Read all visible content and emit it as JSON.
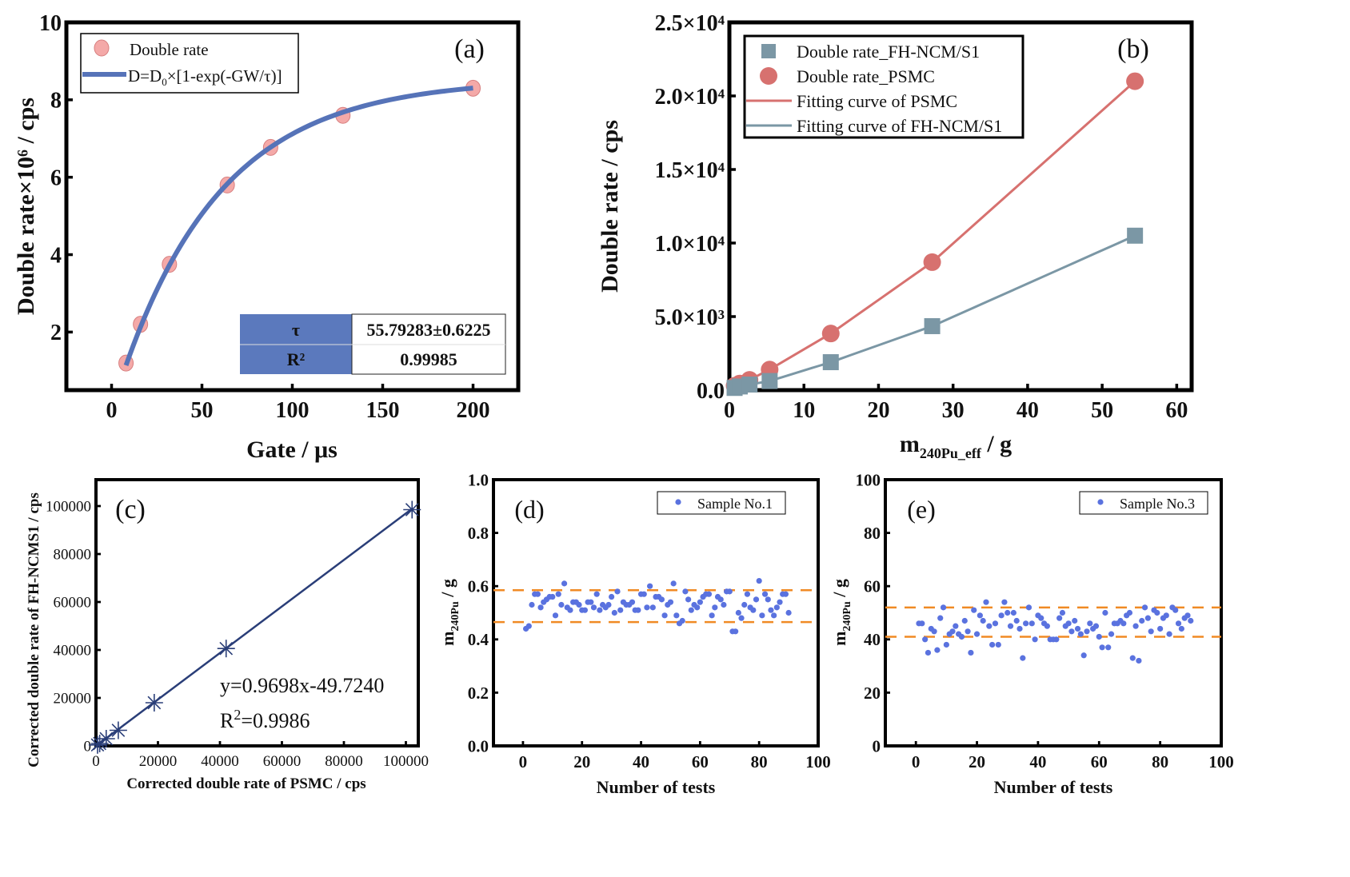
{
  "chart_data": [
    {
      "panel": "(a)",
      "type": "scatter",
      "xlabel": "Gate / μs",
      "ylabel": "Double rate×10⁶ / cps",
      "xlim": [
        -25,
        225
      ],
      "ylim": [
        0.5,
        10
      ],
      "xticks": [
        "0",
        "50",
        "100",
        "150",
        "200"
      ],
      "yticks": [
        "2",
        "4",
        "6",
        "8",
        "10"
      ],
      "grid": false,
      "legend_position": "top-left",
      "colors": {
        "points": "#f4a9a8",
        "point_edge": "#d77f7f",
        "fit": "#5673b8",
        "table_fill": "#5b79bd"
      },
      "series": [
        {
          "name": "Double rate",
          "x": [
            8,
            16,
            32,
            64,
            88,
            128,
            200
          ],
          "y": [
            1.2,
            2.2,
            3.75,
            5.8,
            6.77,
            7.6,
            8.3
          ]
        },
        {
          "name": "D=D0×[1-exp(-GW/τ)]",
          "name_parts": [
            "D=D",
            "0",
            "×[1-exp(-GW/τ)]"
          ],
          "type": "line",
          "D0": 8.54,
          "tau": 55.79283,
          "x_range": [
            8,
            200
          ]
        }
      ],
      "table": [
        {
          "param": "τ",
          "value": "55.79283±0.6225"
        },
        {
          "param": "R²",
          "value": "0.99985"
        }
      ]
    },
    {
      "panel": "(b)",
      "type": "line",
      "xlabel_parts": [
        "m",
        "240Pu_eff",
        " / g"
      ],
      "ylabel": "Double rate / cps",
      "xlim": [
        0,
        62
      ],
      "ylim": [
        0,
        25000
      ],
      "xticks": [
        "0",
        "10",
        "20",
        "30",
        "40",
        "50",
        "60"
      ],
      "yticks": [
        "0.0",
        "5.0×10³",
        "1.0×10⁴",
        "1.5×10⁴",
        "2.0×10⁴",
        "2.5×10⁴"
      ],
      "grid": false,
      "legend_position": "top-left",
      "series": [
        {
          "name": "Double rate_FH-NCM/S1",
          "marker": "square",
          "color": "#7b97a5",
          "x": [
            0.7,
            1.4,
            2.7,
            5.4,
            13.6,
            27.2,
            54.4
          ],
          "y": [
            150,
            250,
            380,
            620,
            1900,
            4350,
            10500
          ]
        },
        {
          "name": "Double rate_PSMC",
          "marker": "circle",
          "color": "#d7716f",
          "x": [
            0.7,
            1.4,
            2.7,
            5.4,
            13.6,
            27.2,
            54.4
          ],
          "y": [
            300,
            450,
            700,
            1400,
            3850,
            8700,
            21000
          ]
        },
        {
          "name": "Fitting curve of PSMC",
          "color": "#d7716f",
          "fit_of": 1
        },
        {
          "name": "Fitting curve of FH-NCM/S1",
          "color": "#7b97a5",
          "fit_of": 0
        }
      ]
    },
    {
      "panel": "(c)",
      "type": "scatter",
      "xlabel": "Corrected double rate of PSMC / cps",
      "ylabel": "Corrected double rate of  FH-NCMS1 / cps",
      "xlim": [
        0,
        104000
      ],
      "ylim": [
        0,
        111000
      ],
      "xticks": [
        "0",
        "20000",
        "40000",
        "60000",
        "80000",
        "100000"
      ],
      "yticks": [
        "0",
        "20000",
        "40000",
        "60000",
        "80000",
        "100000"
      ],
      "grid": false,
      "color": "#2a3e78",
      "x": [
        500,
        1200,
        3300,
        7200,
        18800,
        42000,
        102000
      ],
      "y": [
        400,
        1000,
        3000,
        6500,
        18000,
        40600,
        98500
      ],
      "fit": {
        "slope": 0.9698,
        "intercept": -49.724
      },
      "annotations": [
        "y=0.9698x-49.7240",
        "R",
        "2",
        "=0.9986"
      ]
    },
    {
      "panel": "(d)",
      "type": "scatter",
      "xlabel": "Number of tests",
      "ylabel_parts": [
        "m",
        "240Pu",
        " / g"
      ],
      "xlim": [
        -10,
        100
      ],
      "ylim": [
        0,
        1
      ],
      "xticks": [
        "0",
        "20",
        "40",
        "60",
        "80",
        "100"
      ],
      "yticks": [
        "0.0",
        "0.2",
        "0.4",
        "0.6",
        "0.8",
        "1.0"
      ],
      "legend_position": "top-right",
      "color": "#5a72df",
      "band_color": "#f08a24",
      "bands": [
        0.465,
        0.585
      ],
      "series": [
        {
          "name": "Sample No.1",
          "y": [
            0.44,
            0.45,
            0.53,
            0.57,
            0.57,
            0.52,
            0.54,
            0.55,
            0.56,
            0.56,
            0.49,
            0.57,
            0.53,
            0.61,
            0.52,
            0.51,
            0.54,
            0.54,
            0.53,
            0.51,
            0.51,
            0.54,
            0.54,
            0.52,
            0.57,
            0.51,
            0.53,
            0.52,
            0.53,
            0.56,
            0.5,
            0.58,
            0.51,
            0.54,
            0.53,
            0.53,
            0.54,
            0.51,
            0.51,
            0.57,
            0.57,
            0.52,
            0.6,
            0.52,
            0.56,
            0.56,
            0.55,
            0.49,
            0.53,
            0.54,
            0.61,
            0.49,
            0.46,
            0.47,
            0.58,
            0.55,
            0.51,
            0.53,
            0.52,
            0.54,
            0.56,
            0.57,
            0.57,
            0.49,
            0.52,
            0.56,
            0.55,
            0.53,
            0.58,
            0.58,
            0.43,
            0.43,
            0.5,
            0.48,
            0.53,
            0.57,
            0.52,
            0.51,
            0.55,
            0.62,
            0.49,
            0.57,
            0.55,
            0.51,
            0.49,
            0.52,
            0.54,
            0.57,
            0.57,
            0.5
          ]
        }
      ]
    },
    {
      "panel": "(e)",
      "type": "scatter",
      "xlabel": "Number of tests",
      "ylabel_parts": [
        "m",
        "240Pu",
        " / g"
      ],
      "xlim": [
        -10,
        100
      ],
      "ylim": [
        0,
        100
      ],
      "xticks": [
        "0",
        "20",
        "40",
        "60",
        "80",
        "100"
      ],
      "yticks": [
        "0",
        "20",
        "40",
        "60",
        "80",
        "100"
      ],
      "legend_position": "top-right",
      "color": "#5a72df",
      "band_color": "#f08a24",
      "bands": [
        41,
        52
      ],
      "series": [
        {
          "name": "Sample No.3",
          "y": [
            46,
            46,
            40,
            35,
            44,
            43,
            36,
            48,
            52,
            38,
            42,
            43,
            45,
            42,
            41,
            47,
            43,
            35,
            51,
            42,
            49,
            47,
            54,
            45,
            38,
            46,
            38,
            49,
            54,
            50,
            45,
            50,
            47,
            44,
            33,
            46,
            52,
            46,
            40,
            49,
            48,
            46,
            45,
            40,
            40,
            40,
            48,
            50,
            45,
            46,
            43,
            47,
            44,
            42,
            34,
            43,
            46,
            44,
            45,
            41,
            37,
            50,
            37,
            42,
            46,
            46,
            47,
            46,
            49,
            50,
            33,
            45,
            32,
            47,
            52,
            48,
            43,
            51,
            50,
            44,
            48,
            49,
            42,
            52,
            51,
            46,
            44,
            48,
            49,
            47
          ]
        }
      ]
    }
  ]
}
